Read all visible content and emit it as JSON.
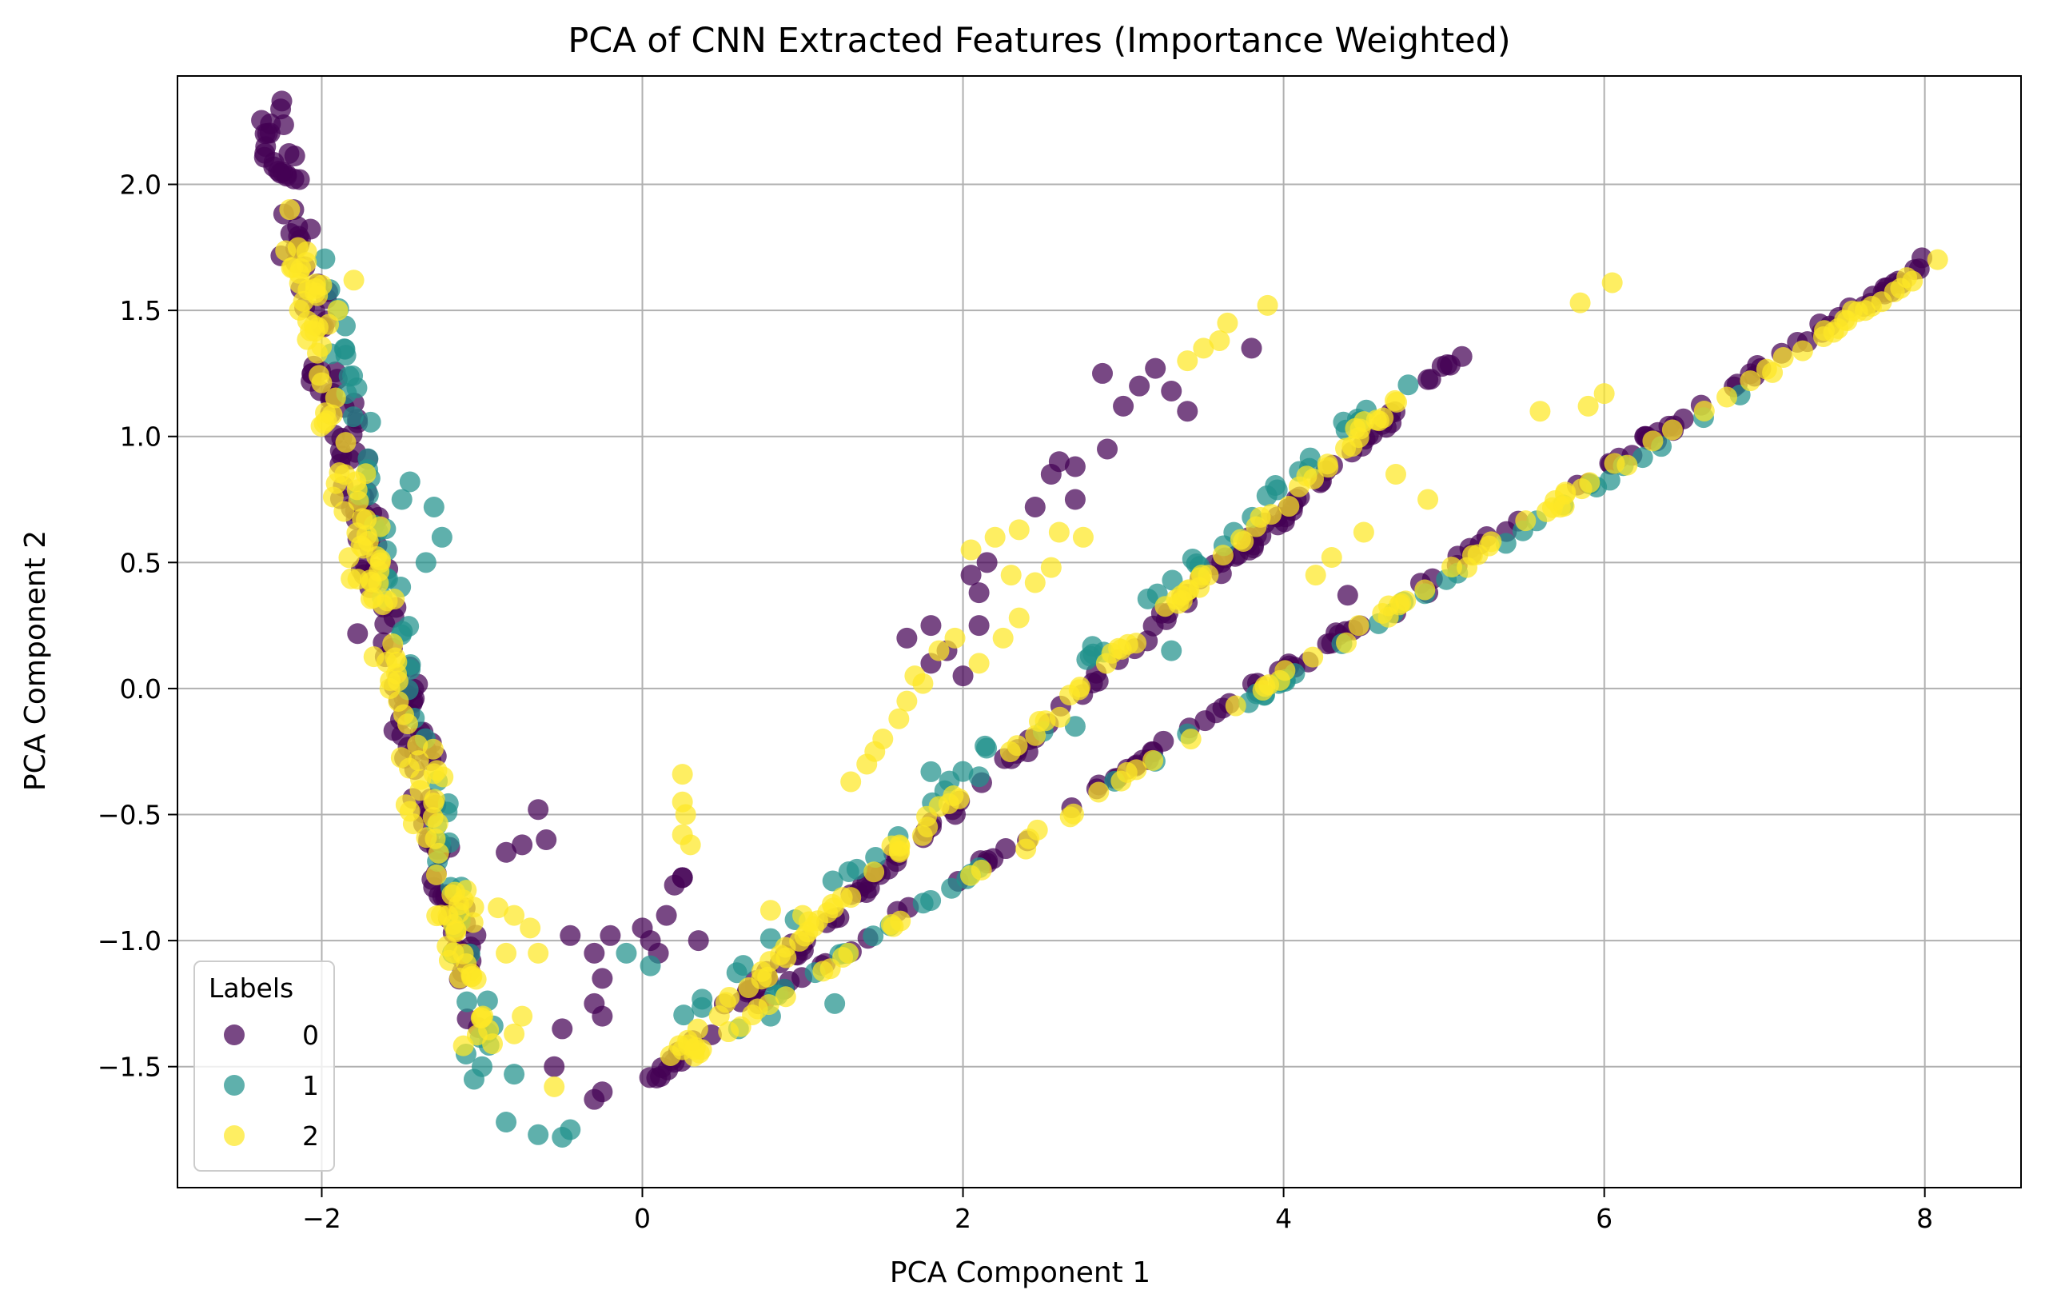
{
  "chart_data": {
    "type": "scatter",
    "title": "PCA of CNN Extracted Features (Importance Weighted)",
    "xlabel": "PCA Component 1",
    "ylabel": "PCA Component 2",
    "xlim": [
      -2.9,
      8.6
    ],
    "ylim": [
      -1.98,
      2.43
    ],
    "xticks": [
      -2,
      0,
      2,
      4,
      6,
      8
    ],
    "yticks": [
      -1.5,
      -1.0,
      -0.5,
      0.0,
      0.5,
      1.0,
      1.5,
      2.0
    ],
    "xtick_labels": [
      "−2",
      "0",
      "2",
      "4",
      "6",
      "8"
    ],
    "ytick_labels": [
      "−1.5",
      "−1.0",
      "−0.5",
      "0.0",
      "0.5",
      "1.0",
      "1.5",
      "2.0"
    ],
    "grid": true,
    "legend": {
      "title": "Labels",
      "placement": "lower-left"
    },
    "series": [
      {
        "name": "0",
        "color": "#440154",
        "segments": [
          {
            "x0": -2.3,
            "y0": 2.22,
            "x1": -1.05,
            "y1": -1.25,
            "n": 170,
            "spread": 0.22
          },
          {
            "x0": 0.05,
            "y0": -1.55,
            "x1": 5.2,
            "y1": 1.38,
            "n": 120,
            "spread": 0.05
          },
          {
            "x0": 0.1,
            "y0": -1.5,
            "x1": 8.0,
            "y1": 1.68,
            "n": 110,
            "spread": 0.035
          }
        ],
        "extra_points": [
          [
            -2.32,
            2.24
          ],
          [
            -2.35,
            2.15
          ],
          [
            -2.3,
            2.07
          ],
          [
            2.87,
            1.25
          ],
          [
            3.1,
            1.2
          ],
          [
            3.3,
            1.18
          ],
          [
            3.4,
            1.1
          ],
          [
            3.2,
            1.27
          ],
          [
            3.0,
            1.12
          ],
          [
            3.8,
            1.35
          ],
          [
            2.6,
            0.9
          ],
          [
            2.7,
            0.88
          ],
          [
            2.55,
            0.85
          ],
          [
            2.9,
            0.95
          ],
          [
            2.45,
            0.72
          ],
          [
            2.7,
            0.75
          ],
          [
            1.65,
            0.2
          ],
          [
            1.8,
            0.25
          ],
          [
            1.9,
            0.15
          ],
          [
            2.1,
            0.25
          ],
          [
            1.8,
            0.1
          ],
          [
            2.0,
            0.05
          ],
          [
            2.05,
            0.45
          ],
          [
            2.1,
            0.38
          ],
          [
            2.15,
            0.5
          ],
          [
            -0.65,
            -0.48
          ],
          [
            -0.75,
            -0.62
          ],
          [
            -0.6,
            -0.6
          ],
          [
            -0.85,
            -0.65
          ],
          [
            -0.3,
            -1.05
          ],
          [
            -0.25,
            -1.15
          ],
          [
            -0.2,
            -0.98
          ],
          [
            -0.3,
            -1.25
          ],
          [
            -0.25,
            -1.3
          ],
          [
            0.0,
            -0.95
          ],
          [
            0.05,
            -1.0
          ],
          [
            0.15,
            -0.9
          ],
          [
            0.25,
            -0.75
          ],
          [
            0.1,
            -1.05
          ],
          [
            0.2,
            -0.78
          ],
          [
            0.25,
            -0.75
          ],
          [
            0.35,
            -1.0
          ],
          [
            -0.45,
            -0.98
          ],
          [
            -0.5,
            -1.35
          ],
          [
            -0.55,
            -1.5
          ],
          [
            -0.3,
            -1.63
          ],
          [
            -0.25,
            -1.6
          ],
          [
            4.4,
            0.37
          ],
          [
            4.7,
            0.3
          ],
          [
            4.9,
            0.38
          ]
        ]
      },
      {
        "name": "1",
        "color": "#21918c",
        "segments": [
          {
            "x0": -2.0,
            "y0": 1.75,
            "x1": -0.95,
            "y1": -1.45,
            "n": 55,
            "spread": 0.15
          },
          {
            "x0": 0.0,
            "y0": -1.45,
            "x1": 4.8,
            "y1": 1.25,
            "n": 45,
            "spread": 0.05
          },
          {
            "x0": 0.5,
            "y0": -1.35,
            "x1": 7.2,
            "y1": 1.3,
            "n": 45,
            "spread": 0.03
          }
        ],
        "extra_points": [
          [
            -1.5,
            0.75
          ],
          [
            -1.45,
            0.82
          ],
          [
            -1.3,
            0.72
          ],
          [
            -1.25,
            0.6
          ],
          [
            -1.35,
            0.5
          ],
          [
            -1.1,
            -1.45
          ],
          [
            -1.05,
            -1.55
          ],
          [
            -1.0,
            -1.5
          ],
          [
            -0.85,
            -1.72
          ],
          [
            -0.65,
            -1.77
          ],
          [
            -0.5,
            -1.78
          ],
          [
            -0.45,
            -1.75
          ],
          [
            -0.8,
            -1.53
          ],
          [
            1.8,
            -0.33
          ],
          [
            2.1,
            -0.35
          ],
          [
            2.5,
            -0.17
          ],
          [
            2.7,
            -0.15
          ],
          [
            3.3,
            0.15
          ],
          [
            3.4,
            -0.18
          ],
          [
            -0.1,
            -1.05
          ],
          [
            0.05,
            -1.1
          ],
          [
            0.6,
            -1.35
          ],
          [
            0.8,
            -1.3
          ],
          [
            1.2,
            -1.25
          ]
        ]
      },
      {
        "name": "2",
        "color": "#fde725",
        "segments": [
          {
            "x0": -2.15,
            "y0": 1.7,
            "x1": -1.0,
            "y1": -1.35,
            "n": 130,
            "spread": 0.2
          },
          {
            "x0": 0.1,
            "y0": -1.5,
            "x1": 4.8,
            "y1": 1.2,
            "n": 90,
            "spread": 0.05
          },
          {
            "x0": 0.3,
            "y0": -1.45,
            "x1": 8.1,
            "y1": 1.7,
            "n": 90,
            "spread": 0.035
          }
        ],
        "extra_points": [
          [
            -2.2,
            1.9
          ],
          [
            -2.0,
            1.6
          ],
          [
            -1.8,
            1.62
          ],
          [
            -1.9,
            1.5
          ],
          [
            1.3,
            -0.37
          ],
          [
            1.4,
            -0.3
          ],
          [
            1.45,
            -0.25
          ],
          [
            1.5,
            -0.2
          ],
          [
            1.6,
            -0.12
          ],
          [
            1.65,
            -0.05
          ],
          [
            1.7,
            0.05
          ],
          [
            1.75,
            0.02
          ],
          [
            1.85,
            0.15
          ],
          [
            1.95,
            0.2
          ],
          [
            2.05,
            0.55
          ],
          [
            2.2,
            0.6
          ],
          [
            2.35,
            0.63
          ],
          [
            2.6,
            0.62
          ],
          [
            2.75,
            0.6
          ],
          [
            2.45,
            0.42
          ],
          [
            2.3,
            0.45
          ],
          [
            2.55,
            0.48
          ],
          [
            2.35,
            0.28
          ],
          [
            2.25,
            0.2
          ],
          [
            2.1,
            0.1
          ],
          [
            3.4,
            1.3
          ],
          [
            3.6,
            1.38
          ],
          [
            3.65,
            1.45
          ],
          [
            3.9,
            1.52
          ],
          [
            3.5,
            1.35
          ],
          [
            5.85,
            1.53
          ],
          [
            6.05,
            1.61
          ],
          [
            5.9,
            1.12
          ],
          [
            6.0,
            1.17
          ],
          [
            5.6,
            1.1
          ],
          [
            0.25,
            -0.34
          ],
          [
            0.25,
            -0.45
          ],
          [
            0.27,
            -0.5
          ],
          [
            0.25,
            -0.58
          ],
          [
            0.3,
            -0.62
          ],
          [
            -0.9,
            -0.87
          ],
          [
            -0.8,
            -0.9
          ],
          [
            -0.7,
            -0.95
          ],
          [
            -0.65,
            -1.05
          ],
          [
            -0.85,
            -1.05
          ],
          [
            -0.75,
            -1.3
          ],
          [
            -0.8,
            -1.37
          ],
          [
            -0.55,
            -1.58
          ],
          [
            0.8,
            -0.88
          ],
          [
            1.0,
            -0.9
          ],
          [
            4.3,
            0.52
          ],
          [
            4.2,
            0.45
          ],
          [
            4.5,
            0.62
          ],
          [
            4.7,
            0.85
          ],
          [
            4.9,
            0.75
          ]
        ]
      }
    ]
  }
}
